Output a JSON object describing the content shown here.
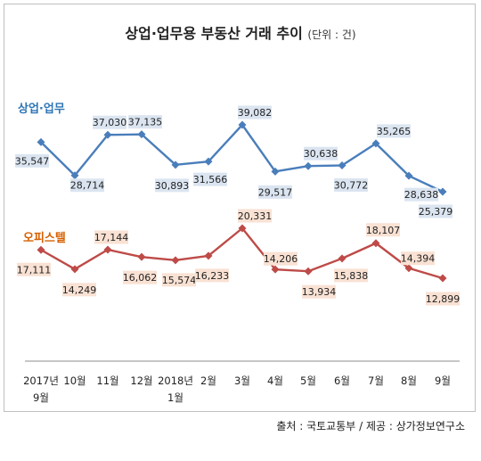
{
  "title": "상업·업무용 부동산 거래 추이",
  "unit": "(단위 : 건)",
  "source": "출처 : 국토교통부 / 제공 : 상가정보연구소",
  "chart_data": {
    "type": "line",
    "title": "상업·업무용 부동산 거래 추이",
    "unit": "(단위 : 건)",
    "categories": [
      [
        "2017년",
        "9월"
      ],
      [
        "10월"
      ],
      [
        "11월"
      ],
      [
        "12월"
      ],
      [
        "2018년",
        "1월"
      ],
      [
        "2월"
      ],
      [
        "3월"
      ],
      [
        "4월"
      ],
      [
        "5월"
      ],
      [
        "6월"
      ],
      [
        "7월"
      ],
      [
        "8월"
      ],
      [
        "9월"
      ]
    ],
    "series": [
      {
        "name": "상업·업무",
        "color": "#4a7ebb",
        "label_color": "#2e75b6",
        "label_bg": "#dbe5f1",
        "values": [
          35547,
          28714,
          37030,
          37135,
          30893,
          31566,
          39082,
          29517,
          30638,
          30772,
          35265,
          28638,
          25379
        ],
        "labels": [
          "35,547",
          "28,714",
          "37,030",
          "37,135",
          "30,893",
          "31,566",
          "39,082",
          "29,517",
          "30,638",
          "30,772",
          "35,265",
          "28,638",
          "25,379"
        ]
      },
      {
        "name": "오피스텔",
        "color": "#be4b48",
        "label_color": "#d65f00",
        "label_bg": "#f9e1d3",
        "values": [
          17111,
          14249,
          17144,
          16062,
          15574,
          16233,
          20331,
          14206,
          13934,
          15838,
          18107,
          14394,
          12899
        ],
        "labels": [
          "17,111",
          "14,249",
          "17,144",
          "16,062",
          "15,574",
          "16,233",
          "20,331",
          "14,206",
          "13,934",
          "15,838",
          "18,107",
          "14,394",
          "12,899"
        ]
      }
    ],
    "grid": false,
    "legend": "none (inline labels at left)"
  }
}
